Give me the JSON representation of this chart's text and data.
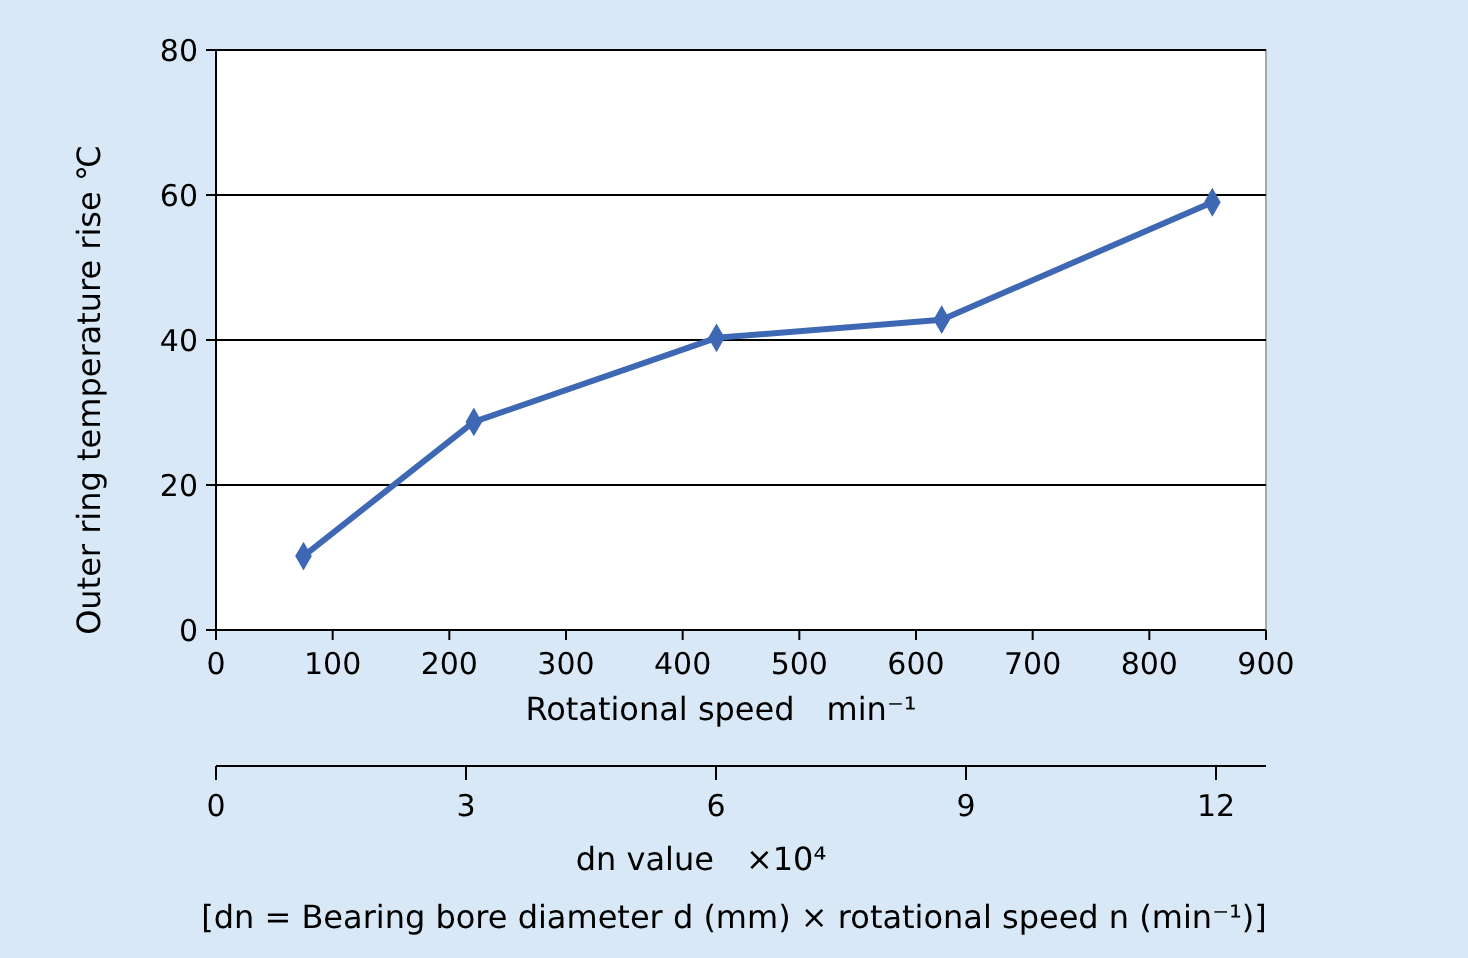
{
  "chart_data": {
    "type": "line",
    "ylabel": "Outer ring temperature rise ℃",
    "xlabel": "Rotational speed　min⁻¹",
    "x2label": "dn value　×10⁴",
    "annotations": [
      "[dn = Bearing bore diameter d (mm) × rotational speed n (min⁻¹)]"
    ],
    "x": [
      75,
      221,
      429,
      622,
      854
    ],
    "series": [
      {
        "color": "#3f68b4",
        "values": [
          10.2,
          28.7,
          40.3,
          42.8,
          59
        ]
      }
    ],
    "xlim": [
      0,
      900
    ],
    "xticks": [
      0,
      100,
      200,
      300,
      400,
      500,
      600,
      700,
      800,
      900
    ],
    "ylim": [
      0,
      80
    ],
    "yticks": [
      0,
      20,
      40,
      60,
      80
    ],
    "x2lim": [
      0,
      12.6
    ],
    "x2ticks": [
      0,
      3,
      6,
      9,
      12
    ],
    "grid": "y",
    "marker": "diamond",
    "line_style": "solid"
  }
}
